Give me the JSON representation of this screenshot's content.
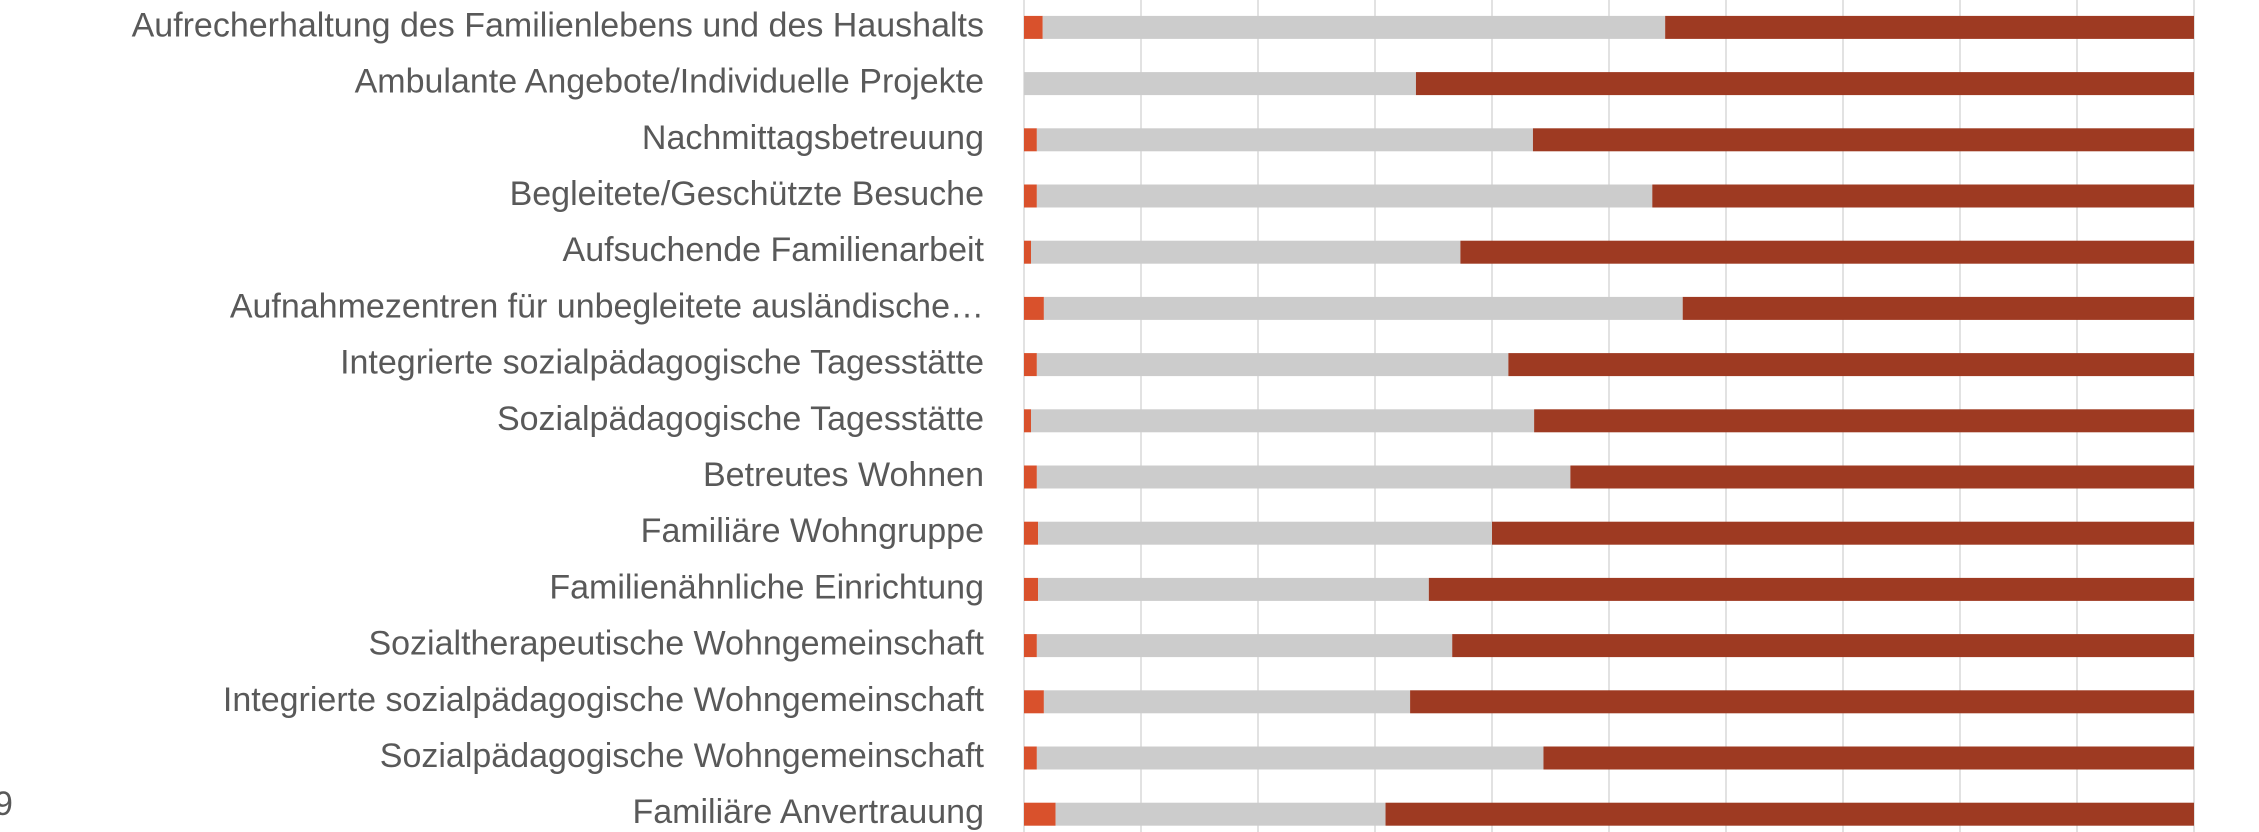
{
  "chart_data": {
    "type": "stacked_barh",
    "annotation": "9",
    "categories": [
      "Aufrecherhaltung des Familienlebens und des Haushalts",
      "Ambulante Angebote/Individuelle Projekte",
      "Nachmittagsbetreuung",
      "Begleitete/Geschützte Besuche",
      "Aufsuchende Familienarbeit",
      "Aufnahmezentren für unbegleitete ausländische…",
      "Integrierte sozialpädagogische Tagesstätte",
      "Sozialpädagogische Tagesstätte",
      "Betreutes Wohnen",
      "Familiäre Wohngruppe",
      "Familienähnliche Einrichtung",
      "Sozialtherapeutische Wohngemeinschaft",
      "Integrierte sozialpädagogische Wohngemeinschaft",
      "Sozialpädagogische Wohngemeinschaft",
      "Familiäre Anvertrauung"
    ],
    "series": [
      {
        "color": "#d9512c",
        "values": [
          1.6,
          0,
          1.1,
          1.1,
          0.6,
          1.7,
          1.1,
          0.6,
          1.1,
          1.2,
          1.2,
          1.1,
          1.7,
          1.1,
          2.7
        ]
      },
      {
        "color": "#cccccc",
        "values": [
          53.2,
          33.5,
          42.4,
          52.6,
          36.7,
          54.6,
          40.3,
          43.0,
          45.6,
          38.8,
          33.4,
          35.5,
          31.3,
          43.3,
          28.2
        ]
      },
      {
        "color": "#9e3a22",
        "values": [
          45.2,
          66.5,
          56.5,
          46.3,
          62.7,
          43.7,
          58.6,
          56.4,
          53.3,
          60.0,
          65.4,
          63.4,
          67.0,
          55.6,
          69.1
        ]
      }
    ],
    "xlim": [
      0,
      100
    ],
    "xticks": [
      0,
      10,
      20,
      30,
      40,
      50,
      60,
      70,
      80,
      90,
      100
    ],
    "grid": true
  }
}
